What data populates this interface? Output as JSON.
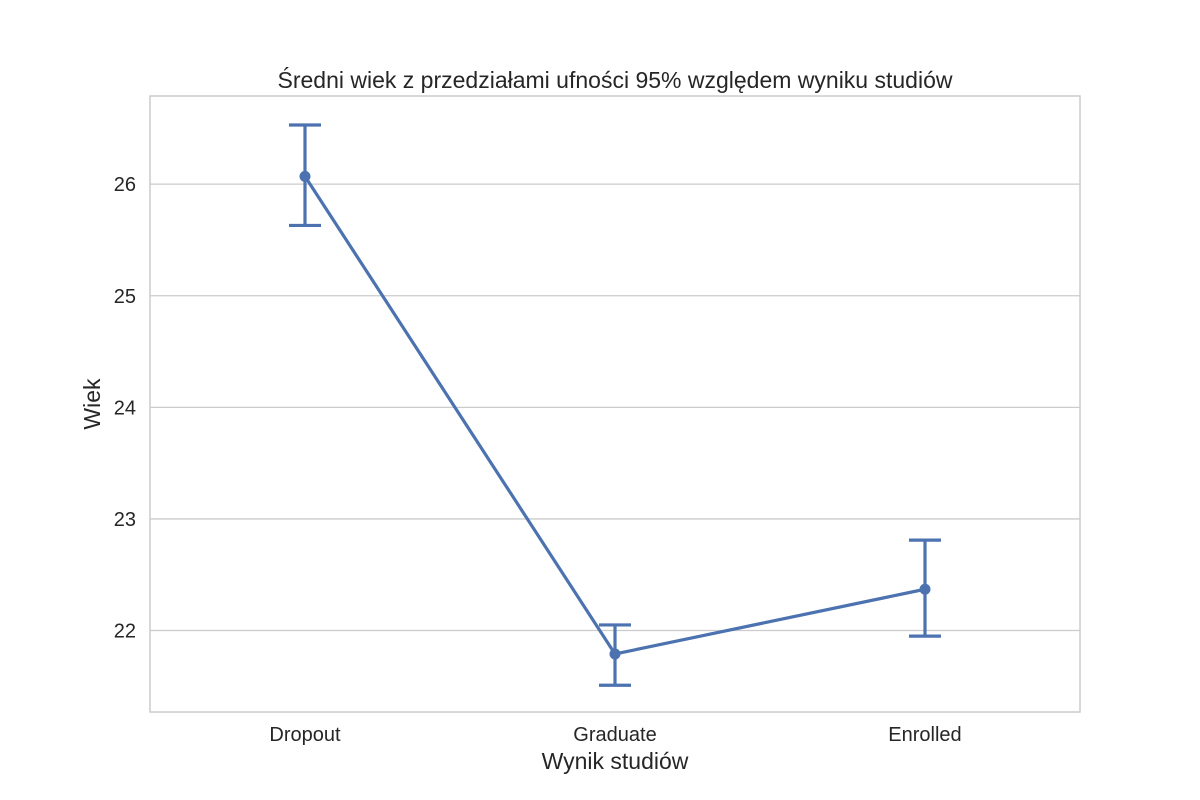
{
  "chart_data": {
    "type": "line",
    "title": "Średni wiek z przedziałami ufności 95% względem wyniku studiów",
    "xlabel": "Wynik studiów",
    "ylabel": "Wiek",
    "categories": [
      "Dropout",
      "Graduate",
      "Enrolled"
    ],
    "series": [
      {
        "values": [
          26.07,
          21.79,
          22.37
        ],
        "ci_lower": [
          25.63,
          21.51,
          21.95
        ],
        "ci_upper": [
          26.53,
          22.05,
          22.81
        ],
        "color": "#4c72b0"
      }
    ],
    "yticks": [
      22,
      23,
      24,
      25,
      26
    ],
    "ylim": [
      21.27,
      26.79
    ],
    "grid": true,
    "gridColor": "#cccccc",
    "spineColor": "#cccccc"
  }
}
